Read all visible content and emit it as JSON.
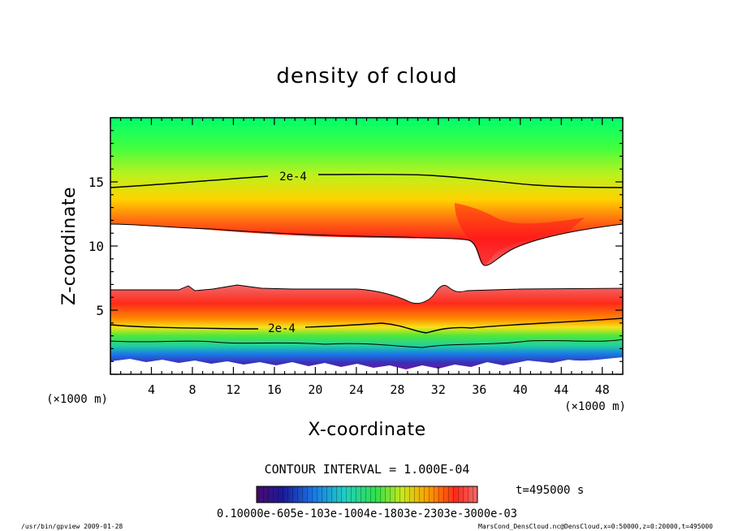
{
  "chart_data": {
    "type": "heatmap",
    "title": "density of cloud",
    "xlabel": "X-coordinate",
    "ylabel": "Z-coordinate",
    "x_unit": "(×1000 m)",
    "z_unit": "(×1000 m)",
    "xlim": [
      0,
      50
    ],
    "ylim": [
      0,
      20
    ],
    "x_ticks": [
      "4",
      "8",
      "12",
      "16",
      "20",
      "24",
      "28",
      "32",
      "36",
      "40",
      "44",
      "48"
    ],
    "y_ticks": [
      "5",
      "10",
      "15"
    ],
    "contour_labels": [
      "2e-4",
      "2e-4"
    ],
    "contour_interval": "CONTOUR INTERVAL = 1.000E-04",
    "time": "t=495000 s",
    "colorbar_label": "0.10000e-605e-103e-1004e-1803e-2303e-3000e-03",
    "grid": false,
    "legend": "none",
    "colors": [
      "#5b1a9a",
      "#1e4bd8",
      "#1fc0e0",
      "#27d86a",
      "#00ff6e",
      "#ffe800",
      "#ff8a00",
      "#ff2a1a",
      "#f55a5a"
    ]
  },
  "footer": {
    "left": "/usr/bin/gpview  2009-01-28",
    "right": "MarsCond_DensCloud.nc@DensCloud,x=0:50000,z=0:20000,t=495000"
  }
}
